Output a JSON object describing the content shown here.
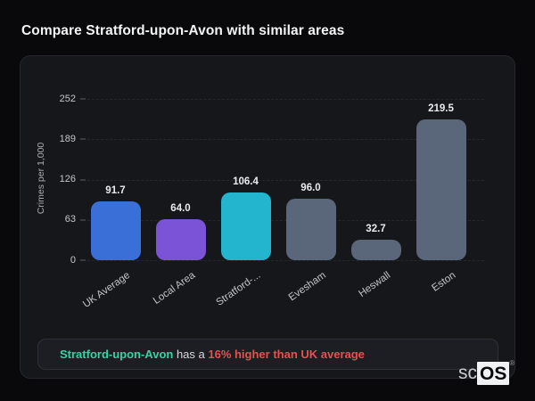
{
  "page": {
    "title": "Compare Stratford-upon-Avon with similar areas"
  },
  "chart_data": {
    "type": "bar",
    "categories": [
      "UK Average",
      "Local Area",
      "Stratford-...",
      "Evesham",
      "Heswall",
      "Eston"
    ],
    "values": [
      91.7,
      64.0,
      106.4,
      96.0,
      32.7,
      219.5
    ],
    "value_labels": [
      "91.7",
      "64.0",
      "106.4",
      "96.0",
      "32.7",
      "219.5"
    ],
    "bar_colors": [
      "#3a6fd8",
      "#7b53d7",
      "#23b4ce",
      "#5a667a",
      "#5a667a",
      "#5a667a"
    ],
    "title": "",
    "xlabel": "",
    "ylabel": "Crimes per 1,000",
    "ylim": [
      0,
      252
    ],
    "yticks": [
      0,
      63,
      126,
      189,
      252
    ],
    "grid": "horizontal-dashed",
    "legend": "none",
    "background": "#16171a"
  },
  "annotation": {
    "subject": "Stratford-upon-Avon",
    "middle": " has a ",
    "highlight": "16% higher than UK average",
    "subject_color": "#36d3a3",
    "highlight_color": "#e4524f"
  },
  "branding": {
    "prefix": "sc",
    "badge": "OS",
    "registered": "®"
  },
  "colors": {
    "page_background": "#09090b",
    "card_background": "#16171a",
    "accent_blue": "#3a6fd8",
    "accent_purple": "#7b53d7",
    "accent_teal": "#23b4ce",
    "neutral_slate": "#5a667a"
  }
}
